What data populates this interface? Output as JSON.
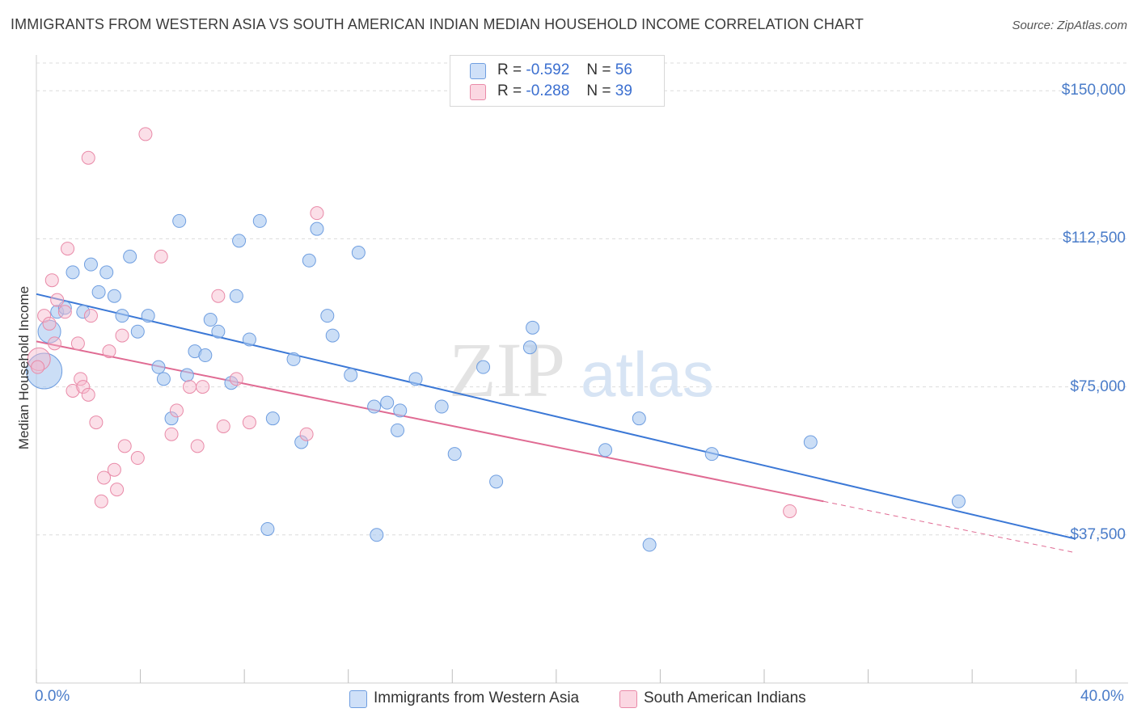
{
  "title": "IMMIGRANTS FROM WESTERN ASIA VS SOUTH AMERICAN INDIAN MEDIAN HOUSEHOLD INCOME CORRELATION CHART",
  "source": "Source: ZipAtlas.com",
  "watermark": {
    "zip": "ZIP",
    "atlas": "atlas"
  },
  "stats": [
    {
      "r_label": "R =",
      "r_value": "-0.592",
      "n_label": "N =",
      "n_value": "56",
      "color": "#a9c8f0"
    },
    {
      "r_label": "R =",
      "r_value": "-0.288",
      "n_label": "N =",
      "n_value": "39",
      "color": "#f6b9cc"
    }
  ],
  "chart_data": {
    "type": "scatter",
    "title": "IMMIGRANTS FROM WESTERN ASIA VS SOUTH AMERICAN INDIAN MEDIAN HOUSEHOLD INCOME CORRELATION CHART",
    "xlabel": "",
    "ylabel": "Median Household Income",
    "xlim": [
      0,
      40
    ],
    "ylim": [
      0,
      157000
    ],
    "x_tick_labels": [
      "0.0%",
      "40.0%"
    ],
    "y_ticks": [
      {
        "value": 37500,
        "label": "$37,500"
      },
      {
        "value": 75000,
        "label": "$75,000"
      },
      {
        "value": 112500,
        "label": "$112,500"
      },
      {
        "value": 150000,
        "label": "$150,000"
      }
    ],
    "grid": "horizontal dashed",
    "legend_position": "bottom",
    "series": [
      {
        "name": "Immigrants from Western Asia",
        "color": "#a9c8f0",
        "stroke": "#6f9ee0",
        "trend": {
          "x": [
            0,
            40
          ],
          "y": [
            98500,
            36500
          ],
          "color": "#3b78d6"
        },
        "points": [
          [
            0.3,
            79000,
            3
          ],
          [
            0.5,
            89000,
            2
          ],
          [
            0.8,
            94000,
            1
          ],
          [
            1.1,
            95000,
            1
          ],
          [
            1.4,
            104000,
            1
          ],
          [
            1.8,
            94000,
            1
          ],
          [
            2.1,
            106000,
            1
          ],
          [
            2.4,
            99000,
            1
          ],
          [
            2.7,
            104000,
            1
          ],
          [
            3.0,
            98000,
            1
          ],
          [
            3.3,
            93000,
            1
          ],
          [
            3.6,
            108000,
            1
          ],
          [
            3.9,
            89000,
            1
          ],
          [
            4.3,
            93000,
            1
          ],
          [
            4.7,
            80000,
            1
          ],
          [
            4.9,
            77000,
            1
          ],
          [
            5.2,
            67000,
            1
          ],
          [
            5.5,
            117000,
            1
          ],
          [
            5.8,
            78000,
            1
          ],
          [
            6.1,
            84000,
            1
          ],
          [
            6.5,
            83000,
            1
          ],
          [
            6.7,
            92000,
            1
          ],
          [
            7.0,
            89000,
            1
          ],
          [
            7.5,
            76000,
            1
          ],
          [
            7.7,
            98000,
            1
          ],
          [
            7.8,
            112000,
            1
          ],
          [
            8.2,
            87000,
            1
          ],
          [
            8.6,
            117000,
            1
          ],
          [
            8.9,
            39000,
            1
          ],
          [
            9.1,
            67000,
            1
          ],
          [
            9.9,
            82000,
            1
          ],
          [
            10.2,
            61000,
            1
          ],
          [
            10.5,
            107000,
            1
          ],
          [
            10.8,
            115000,
            1
          ],
          [
            11.2,
            93000,
            1
          ],
          [
            11.4,
            88000,
            1
          ],
          [
            12.1,
            78000,
            1
          ],
          [
            12.4,
            109000,
            1
          ],
          [
            13.0,
            70000,
            1
          ],
          [
            13.1,
            37500,
            1
          ],
          [
            13.5,
            71000,
            1
          ],
          [
            13.9,
            64000,
            1
          ],
          [
            14.0,
            69000,
            1
          ],
          [
            14.6,
            77000,
            1
          ],
          [
            15.6,
            70000,
            1
          ],
          [
            16.1,
            58000,
            1
          ],
          [
            17.2,
            80000,
            1
          ],
          [
            17.7,
            51000,
            1
          ],
          [
            19.0,
            85000,
            1
          ],
          [
            19.1,
            90000,
            1
          ],
          [
            21.9,
            59000,
            1
          ],
          [
            23.2,
            67000,
            1
          ],
          [
            23.6,
            35000,
            1
          ],
          [
            26.0,
            58000,
            1
          ],
          [
            29.8,
            61000,
            1
          ],
          [
            35.5,
            46000,
            1
          ]
        ]
      },
      {
        "name": "South American Indians",
        "color": "#f6b9cc",
        "stroke": "#e98aa8",
        "trend": {
          "x": [
            0,
            30.3
          ],
          "y": [
            86500,
            46000
          ],
          "color": "#e06b93",
          "dashed_extension": {
            "x": [
              30.3,
              40
            ],
            "y": [
              46000,
              33000
            ]
          }
        },
        "points": [
          [
            0.1,
            82000,
            2
          ],
          [
            0.3,
            93000,
            1
          ],
          [
            0.5,
            91000,
            1
          ],
          [
            0.6,
            102000,
            1
          ],
          [
            0.7,
            86000,
            1
          ],
          [
            0.8,
            97000,
            1
          ],
          [
            1.1,
            94000,
            1
          ],
          [
            1.2,
            110000,
            1
          ],
          [
            1.4,
            74000,
            1
          ],
          [
            1.6,
            86000,
            1
          ],
          [
            1.7,
            77000,
            1
          ],
          [
            1.8,
            75000,
            1
          ],
          [
            2.0,
            73000,
            1
          ],
          [
            2.1,
            93000,
            1
          ],
          [
            2.3,
            66000,
            1
          ],
          [
            2.5,
            46000,
            1
          ],
          [
            2.6,
            52000,
            1
          ],
          [
            2.8,
            84000,
            1
          ],
          [
            3.0,
            54000,
            1
          ],
          [
            3.1,
            49000,
            1
          ],
          [
            3.3,
            88000,
            1
          ],
          [
            3.4,
            60000,
            1
          ],
          [
            3.9,
            57000,
            1
          ],
          [
            2.0,
            133000,
            1
          ],
          [
            4.2,
            139000,
            1
          ],
          [
            4.8,
            108000,
            1
          ],
          [
            5.2,
            63000,
            1
          ],
          [
            5.4,
            69000,
            1
          ],
          [
            5.9,
            75000,
            1
          ],
          [
            6.2,
            60000,
            1
          ],
          [
            6.4,
            75000,
            1
          ],
          [
            7.0,
            98000,
            1
          ],
          [
            7.2,
            65000,
            1
          ],
          [
            7.7,
            77000,
            1
          ],
          [
            8.2,
            66000,
            1
          ],
          [
            10.4,
            63000,
            1
          ],
          [
            10.8,
            119000,
            1
          ],
          [
            29.0,
            43500,
            1
          ],
          [
            0.05,
            80000,
            1
          ]
        ]
      }
    ]
  },
  "legend": [
    {
      "label": "Immigrants from Western Asia",
      "color": "#a9c8f0"
    },
    {
      "label": "South American Indians",
      "color": "#f6b9cc"
    }
  ]
}
